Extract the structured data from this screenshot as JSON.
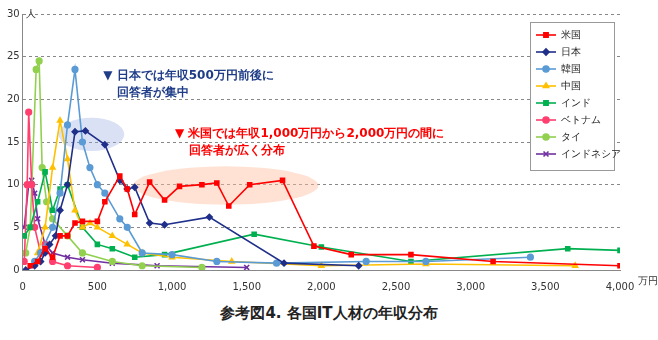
{
  "chart_data": {
    "type": "line",
    "title": "参考図4. 各国IT人材の年収分布",
    "x_label": "万円",
    "y_label": "人",
    "xlim": [
      0,
      4000
    ],
    "xticks": [
      0,
      500,
      {
        "value": 1000,
        "label": "1,000"
      },
      {
        "value": 1500,
        "label": "1,500"
      },
      {
        "value": 2000,
        "label": "2,000"
      },
      {
        "value": 2500,
        "label": "2,500"
      },
      {
        "value": 3000,
        "label": "3,000"
      },
      {
        "value": 3500,
        "label": "3,500"
      },
      {
        "value": 4000,
        "label": "4,000"
      }
    ],
    "ylim": [
      0,
      30
    ],
    "yticks": [
      0,
      5,
      10,
      15,
      20,
      25,
      30
    ],
    "grid": true,
    "legend": "upper right",
    "annotations": [
      {
        "text": [
          "▼ 日本では年収500万円前後に",
          "回答者が集中"
        ],
        "color": "#1f3c88"
      },
      {
        "text": [
          "▼ 米国では年収1,000万円から2,000万円の間に",
          "回答者が広く分布"
        ],
        "color": "#ff0000"
      }
    ],
    "series": [
      {
        "name": "米国",
        "color": "#ff0000",
        "marker": "square",
        "x": [
          50,
          100,
          150,
          200,
          250,
          300,
          350,
          400,
          500,
          550,
          650,
          700,
          750,
          850,
          950,
          1050,
          1200,
          1300,
          1380,
          1520,
          1740,
          1950,
          2200,
          2600,
          3150,
          4000
        ],
        "values": [
          0.5,
          1,
          2.5,
          1.5,
          4,
          4,
          5.5,
          5.7,
          5.7,
          8,
          11,
          9.5,
          6.5,
          10.3,
          8.2,
          9.8,
          10,
          10.2,
          7.5,
          10,
          10.5,
          2.8,
          1.8,
          1.8,
          1,
          0.5
        ]
      },
      {
        "name": "日本",
        "color": "#1f2f8a",
        "marker": "diamond",
        "x": [
          20,
          80,
          120,
          150,
          180,
          220,
          250,
          300,
          350,
          420,
          550,
          650,
          700,
          750,
          850,
          950,
          1250,
          1750,
          2250
        ],
        "values": [
          0,
          0.5,
          1,
          2,
          3,
          4,
          7,
          10,
          16.2,
          16.3,
          14.7,
          10.5,
          9.5,
          9.7,
          5.5,
          5.3,
          6.2,
          0.8,
          0.5
        ]
      },
      {
        "name": "韓国",
        "color": "#5b9bd5",
        "marker": "circle",
        "x": [
          80,
          120,
          200,
          250,
          300,
          350,
          400,
          450,
          500,
          550,
          650,
          700,
          800,
          1000,
          1300,
          1700,
          2300,
          2700,
          3400
        ],
        "values": [
          1,
          2,
          5,
          9,
          17,
          23.5,
          15,
          12,
          10,
          9,
          6,
          5,
          2,
          1.8,
          1,
          0.8,
          1,
          1,
          1.5
        ]
      },
      {
        "name": "中国",
        "color": "#ffc000",
        "marker": "triangle",
        "x": [
          100,
          150,
          200,
          250,
          300,
          350,
          400,
          450,
          500,
          600,
          700,
          800,
          1000,
          1400,
          2000,
          2700,
          3700
        ],
        "values": [
          2,
          5,
          12,
          17.5,
          13,
          7,
          5,
          5.5,
          5,
          4,
          3,
          2,
          1.5,
          1,
          0.5,
          0.7,
          0.5
        ]
      },
      {
        "name": "インド",
        "color": "#00b050",
        "marker": "square",
        "x": [
          10,
          50,
          100,
          150,
          200,
          250,
          300,
          400,
          500,
          600,
          750,
          950,
          1550,
          2000,
          2600,
          3650,
          4000
        ],
        "values": [
          4,
          5,
          8,
          11.5,
          7,
          9.5,
          10,
          5,
          3,
          2.5,
          1.5,
          1.8,
          4.2,
          2.7,
          1,
          2.5,
          2.3
        ]
      },
      {
        "name": "ベトナム",
        "color": "#ff3f6f",
        "marker": "circle",
        "x": [
          10,
          30,
          40,
          60,
          80,
          120,
          150,
          200,
          300,
          500
        ],
        "values": [
          1,
          10,
          18.5,
          10,
          5,
          2,
          3,
          1,
          0.5,
          0.3
        ]
      },
      {
        "name": "タイ",
        "color": "#92d050",
        "marker": "circle",
        "x": [
          20,
          50,
          90,
          110,
          130,
          160,
          200,
          300,
          400,
          600,
          800,
          1200
        ],
        "values": [
          2,
          5,
          23.5,
          24.5,
          12,
          8,
          6,
          4,
          2,
          1,
          0.5,
          0.3
        ]
      },
      {
        "name": "インドネシア",
        "color": "#7030a0",
        "marker": "x",
        "x": [
          10,
          40,
          60,
          80,
          100,
          150,
          200,
          300,
          400,
          600,
          900,
          1500
        ],
        "values": [
          5,
          10,
          10.5,
          9,
          6,
          3,
          2,
          1.5,
          1.2,
          0.8,
          0.5,
          0.3
        ]
      }
    ]
  }
}
